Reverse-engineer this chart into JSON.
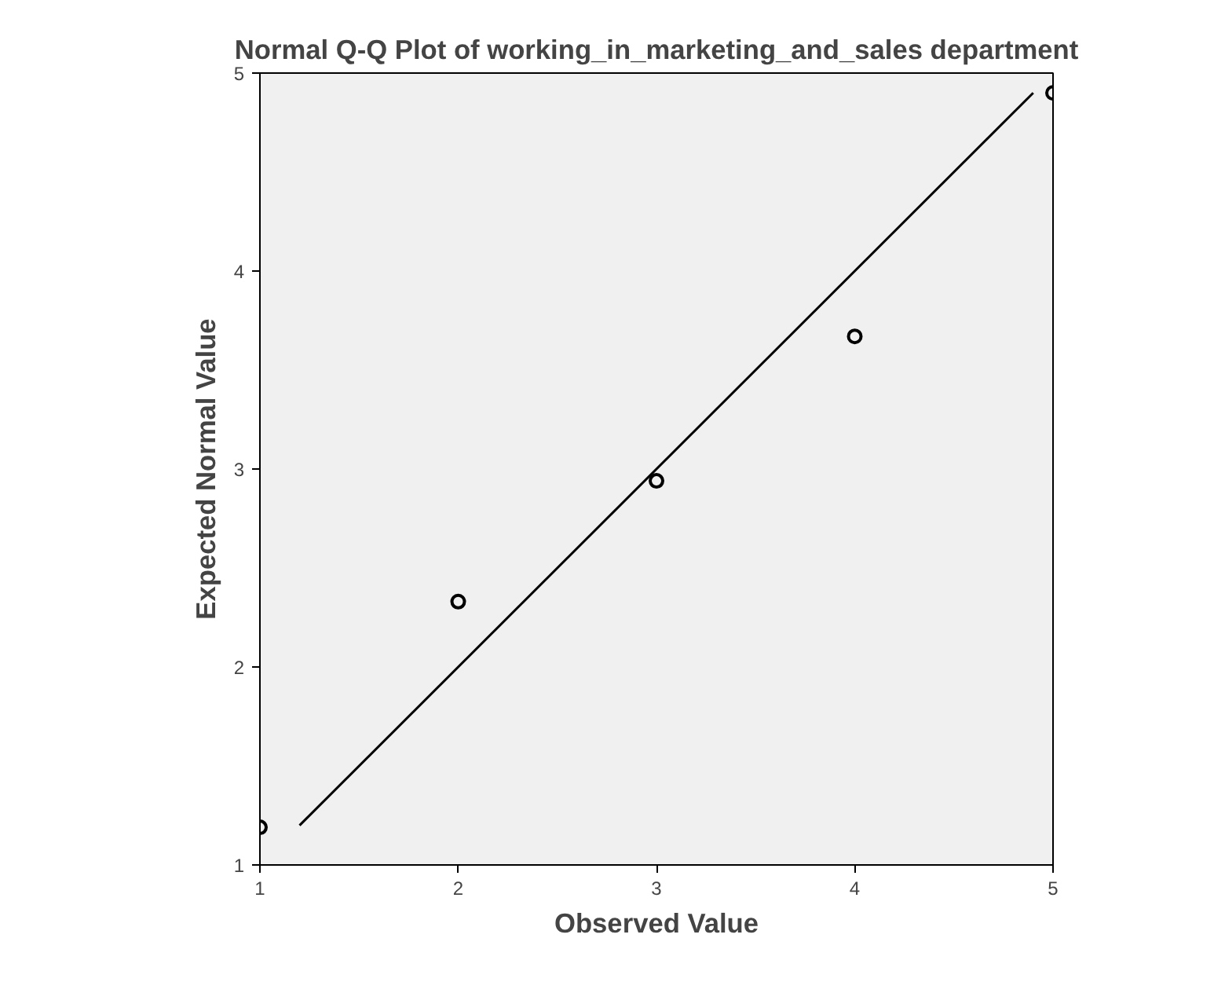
{
  "chart_data": {
    "type": "scatter",
    "title": "Normal Q-Q Plot of working_in_marketing_and_sales department",
    "xlabel": "Observed Value",
    "ylabel": "Expected Normal Value",
    "xlim": [
      1,
      5
    ],
    "ylim": [
      1,
      5
    ],
    "xticks": [
      1,
      2,
      3,
      4,
      5
    ],
    "yticks": [
      1,
      2,
      3,
      4,
      5
    ],
    "grid": false,
    "marker": "circle",
    "series": [
      {
        "color": "#000000",
        "x": [
          1,
          2,
          3,
          4,
          5
        ],
        "values": [
          1.19,
          2.33,
          2.94,
          3.67,
          4.9
        ]
      },
      {
        "type": "line",
        "color": "#000000",
        "x": [
          1.2,
          4.9
        ],
        "values": [
          1.2,
          4.9
        ],
        "line_style": "solid",
        "marker": "none"
      }
    ]
  }
}
